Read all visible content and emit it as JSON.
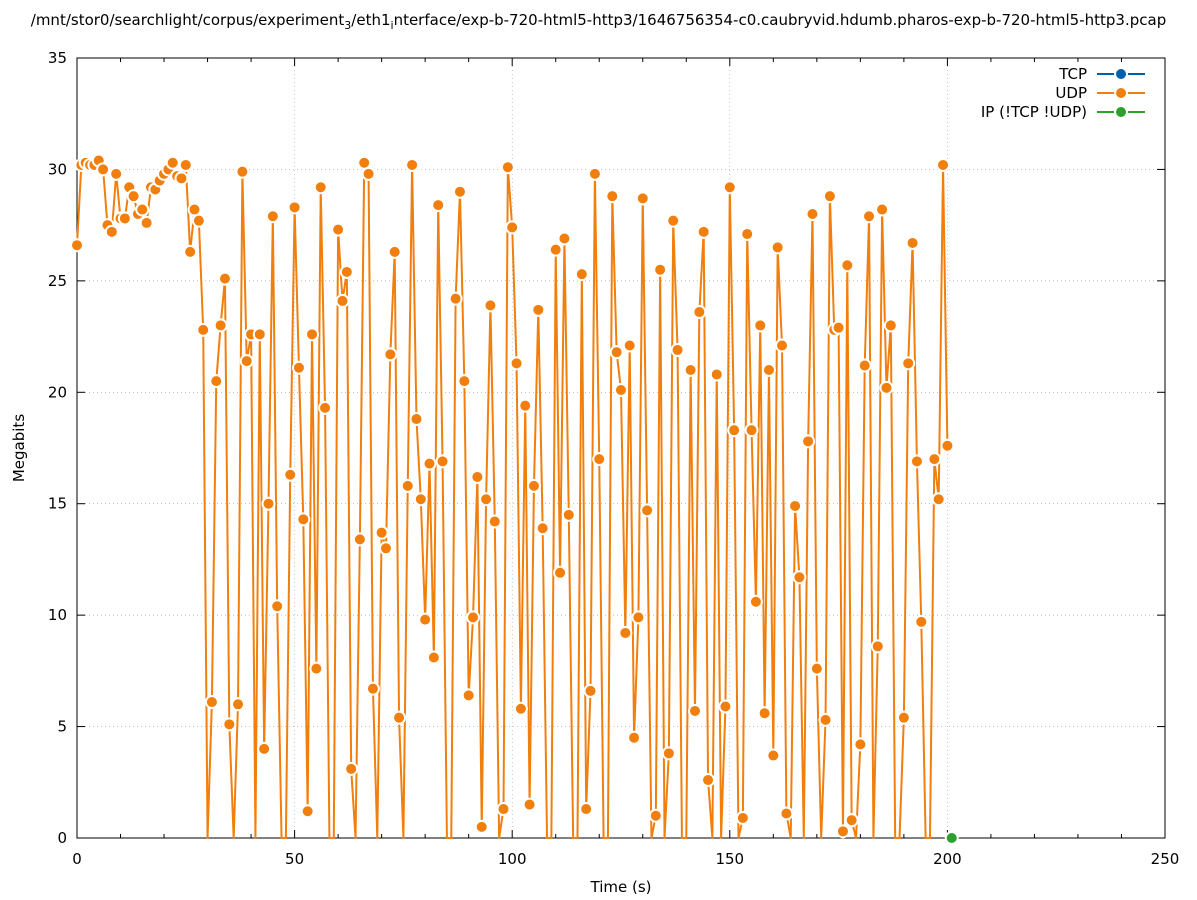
{
  "chart_data": {
    "type": "line",
    "title": "/mnt/stor0/searchlight/corpus/experiment_3/eth1_interface/exp-b-720-html5-http3/1646756354-c0.caubryvid.hdumb.pharos-exp-b-720-html5-http3.pcap",
    "title_parts": {
      "p1": "/mnt/stor0/searchlight/corpus/experiment",
      "sub1": "3",
      "p2": "/eth1",
      "sub2": "i",
      "p3": "nterface/exp-b-720-html5-http3/1646756354-c0.caubryvid.hdumb.pharos-exp-b-720-html5-http3.pcap"
    },
    "xlabel": "Time (s)",
    "ylabel": "Megabits",
    "xlim": [
      0,
      250
    ],
    "ylim": [
      0,
      35
    ],
    "xticks": [
      0,
      50,
      100,
      150,
      200,
      250
    ],
    "yticks": [
      0,
      5,
      10,
      15,
      20,
      25,
      30,
      35
    ],
    "grid": true,
    "legend_position": "top-right",
    "series": [
      {
        "name": "TCP",
        "color": "#0060ad",
        "points": []
      },
      {
        "name": "UDP",
        "color": "#f07f0d",
        "points": [
          [
            0,
            26.6
          ],
          [
            1,
            30.2
          ],
          [
            2,
            30.3
          ],
          [
            3,
            30.2
          ],
          [
            4,
            30.2
          ],
          [
            5,
            30.4
          ],
          [
            6,
            30.0
          ],
          [
            7,
            27.5
          ],
          [
            8,
            27.2
          ],
          [
            9,
            29.8
          ],
          [
            10,
            27.8
          ],
          [
            11,
            27.8
          ],
          [
            12,
            29.2
          ],
          [
            13,
            28.8
          ],
          [
            14,
            28.0
          ],
          [
            15,
            28.2
          ],
          [
            16,
            27.6
          ],
          [
            17,
            29.2
          ],
          [
            18,
            29.1
          ],
          [
            19,
            29.5
          ],
          [
            20,
            29.8
          ],
          [
            21,
            30.0
          ],
          [
            22,
            30.3
          ],
          [
            23,
            29.7
          ],
          [
            24,
            29.6
          ],
          [
            25,
            30.2
          ],
          [
            26,
            26.3
          ],
          [
            27,
            28.2
          ],
          [
            28,
            27.7
          ],
          [
            29,
            22.8
          ],
          [
            30,
            0.0
          ],
          [
            31,
            6.1
          ],
          [
            32,
            20.5
          ],
          [
            33,
            23.0
          ],
          [
            34,
            25.1
          ],
          [
            35,
            5.1
          ],
          [
            36,
            0.0
          ],
          [
            37,
            6.0
          ],
          [
            38,
            29.9
          ],
          [
            39,
            21.4
          ],
          [
            40,
            22.6
          ],
          [
            41,
            0.0
          ],
          [
            42,
            22.6
          ],
          [
            43,
            4.0
          ],
          [
            44,
            15.0
          ],
          [
            45,
            27.9
          ],
          [
            46,
            10.4
          ],
          [
            47,
            0.0
          ],
          [
            48,
            0.0
          ],
          [
            49,
            16.3
          ],
          [
            50,
            28.3
          ],
          [
            51,
            21.1
          ],
          [
            52,
            14.3
          ],
          [
            53,
            1.2
          ],
          [
            54,
            22.6
          ],
          [
            55,
            7.6
          ],
          [
            56,
            29.2
          ],
          [
            57,
            19.3
          ],
          [
            58,
            0.0
          ],
          [
            59,
            0.0
          ],
          [
            60,
            27.3
          ],
          [
            61,
            24.1
          ],
          [
            62,
            25.4
          ],
          [
            63,
            3.1
          ],
          [
            64,
            0.0
          ],
          [
            65,
            13.4
          ],
          [
            66,
            30.3
          ],
          [
            67,
            29.8
          ],
          [
            68,
            6.7
          ],
          [
            69,
            0.0
          ],
          [
            70,
            13.7
          ],
          [
            71,
            13.0
          ],
          [
            72,
            21.7
          ],
          [
            73,
            26.3
          ],
          [
            74,
            5.4
          ],
          [
            75,
            0.0
          ],
          [
            76,
            15.8
          ],
          [
            77,
            30.2
          ],
          [
            78,
            18.8
          ],
          [
            79,
            15.2
          ],
          [
            80,
            9.8
          ],
          [
            81,
            16.8
          ],
          [
            82,
            8.1
          ],
          [
            83,
            28.4
          ],
          [
            84,
            16.9
          ],
          [
            85,
            0.0
          ],
          [
            86,
            0.0
          ],
          [
            87,
            24.2
          ],
          [
            88,
            29.0
          ],
          [
            89,
            20.5
          ],
          [
            90,
            6.4
          ],
          [
            91,
            9.9
          ],
          [
            92,
            16.2
          ],
          [
            93,
            0.5
          ],
          [
            94,
            15.2
          ],
          [
            95,
            23.9
          ],
          [
            96,
            14.2
          ],
          [
            97,
            0.0
          ],
          [
            98,
            1.3
          ],
          [
            99,
            30.1
          ],
          [
            100,
            27.4
          ],
          [
            101,
            21.3
          ],
          [
            102,
            5.8
          ],
          [
            103,
            19.4
          ],
          [
            104,
            1.5
          ],
          [
            105,
            15.8
          ],
          [
            106,
            23.7
          ],
          [
            107,
            13.9
          ],
          [
            108,
            0.0
          ],
          [
            109,
            0.0
          ],
          [
            110,
            26.4
          ],
          [
            111,
            11.9
          ],
          [
            112,
            26.9
          ],
          [
            113,
            14.5
          ],
          [
            114,
            0.0
          ],
          [
            115,
            0.0
          ],
          [
            116,
            25.3
          ],
          [
            117,
            1.3
          ],
          [
            118,
            6.6
          ],
          [
            119,
            29.8
          ],
          [
            120,
            17.0
          ],
          [
            121,
            0.0
          ],
          [
            122,
            0.0
          ],
          [
            123,
            28.8
          ],
          [
            124,
            21.8
          ],
          [
            125,
            20.1
          ],
          [
            126,
            9.2
          ],
          [
            127,
            22.1
          ],
          [
            128,
            4.5
          ],
          [
            129,
            9.9
          ],
          [
            130,
            28.7
          ],
          [
            131,
            14.7
          ],
          [
            132,
            0.0
          ],
          [
            133,
            1.0
          ],
          [
            134,
            25.5
          ],
          [
            135,
            0.0
          ],
          [
            136,
            3.8
          ],
          [
            137,
            27.7
          ],
          [
            138,
            21.9
          ],
          [
            139,
            0.0
          ],
          [
            140,
            0.0
          ],
          [
            141,
            21.0
          ],
          [
            142,
            5.7
          ],
          [
            143,
            23.6
          ],
          [
            144,
            27.2
          ],
          [
            145,
            2.6
          ],
          [
            146,
            0.0
          ],
          [
            147,
            20.8
          ],
          [
            148,
            0.0
          ],
          [
            149,
            5.9
          ],
          [
            150,
            29.2
          ],
          [
            151,
            18.3
          ],
          [
            152,
            0.0
          ],
          [
            153,
            0.9
          ],
          [
            154,
            27.1
          ],
          [
            155,
            18.3
          ],
          [
            156,
            10.6
          ],
          [
            157,
            23.0
          ],
          [
            158,
            5.6
          ],
          [
            159,
            21.0
          ],
          [
            160,
            3.7
          ],
          [
            161,
            26.5
          ],
          [
            162,
            22.1
          ],
          [
            163,
            1.1
          ],
          [
            164,
            0.0
          ],
          [
            165,
            14.9
          ],
          [
            166,
            11.7
          ],
          [
            167,
            0.0
          ],
          [
            168,
            17.8
          ],
          [
            169,
            28.0
          ],
          [
            170,
            7.6
          ],
          [
            171,
            0.0
          ],
          [
            172,
            5.3
          ],
          [
            173,
            28.8
          ],
          [
            174,
            22.8
          ],
          [
            175,
            22.9
          ],
          [
            176,
            0.3
          ],
          [
            177,
            25.7
          ],
          [
            178,
            0.8
          ],
          [
            179,
            0.0
          ],
          [
            180,
            4.2
          ],
          [
            181,
            21.2
          ],
          [
            182,
            27.9
          ],
          [
            183,
            0.0
          ],
          [
            184,
            8.6
          ],
          [
            185,
            28.2
          ],
          [
            186,
            20.2
          ],
          [
            187,
            23.0
          ],
          [
            188,
            0.0
          ],
          [
            189,
            0.0
          ],
          [
            190,
            5.4
          ],
          [
            191,
            21.3
          ],
          [
            192,
            26.7
          ],
          [
            193,
            16.9
          ],
          [
            194,
            9.7
          ],
          [
            195,
            0.0
          ],
          [
            196,
            0.0
          ],
          [
            197,
            17.0
          ],
          [
            198,
            15.2
          ],
          [
            199,
            30.2
          ],
          [
            200,
            17.6
          ]
        ]
      },
      {
        "name": "IP (!TCP  !UDP)",
        "color": "#2ca02c",
        "points": [
          [
            201.0,
            0.0
          ]
        ]
      }
    ]
  }
}
